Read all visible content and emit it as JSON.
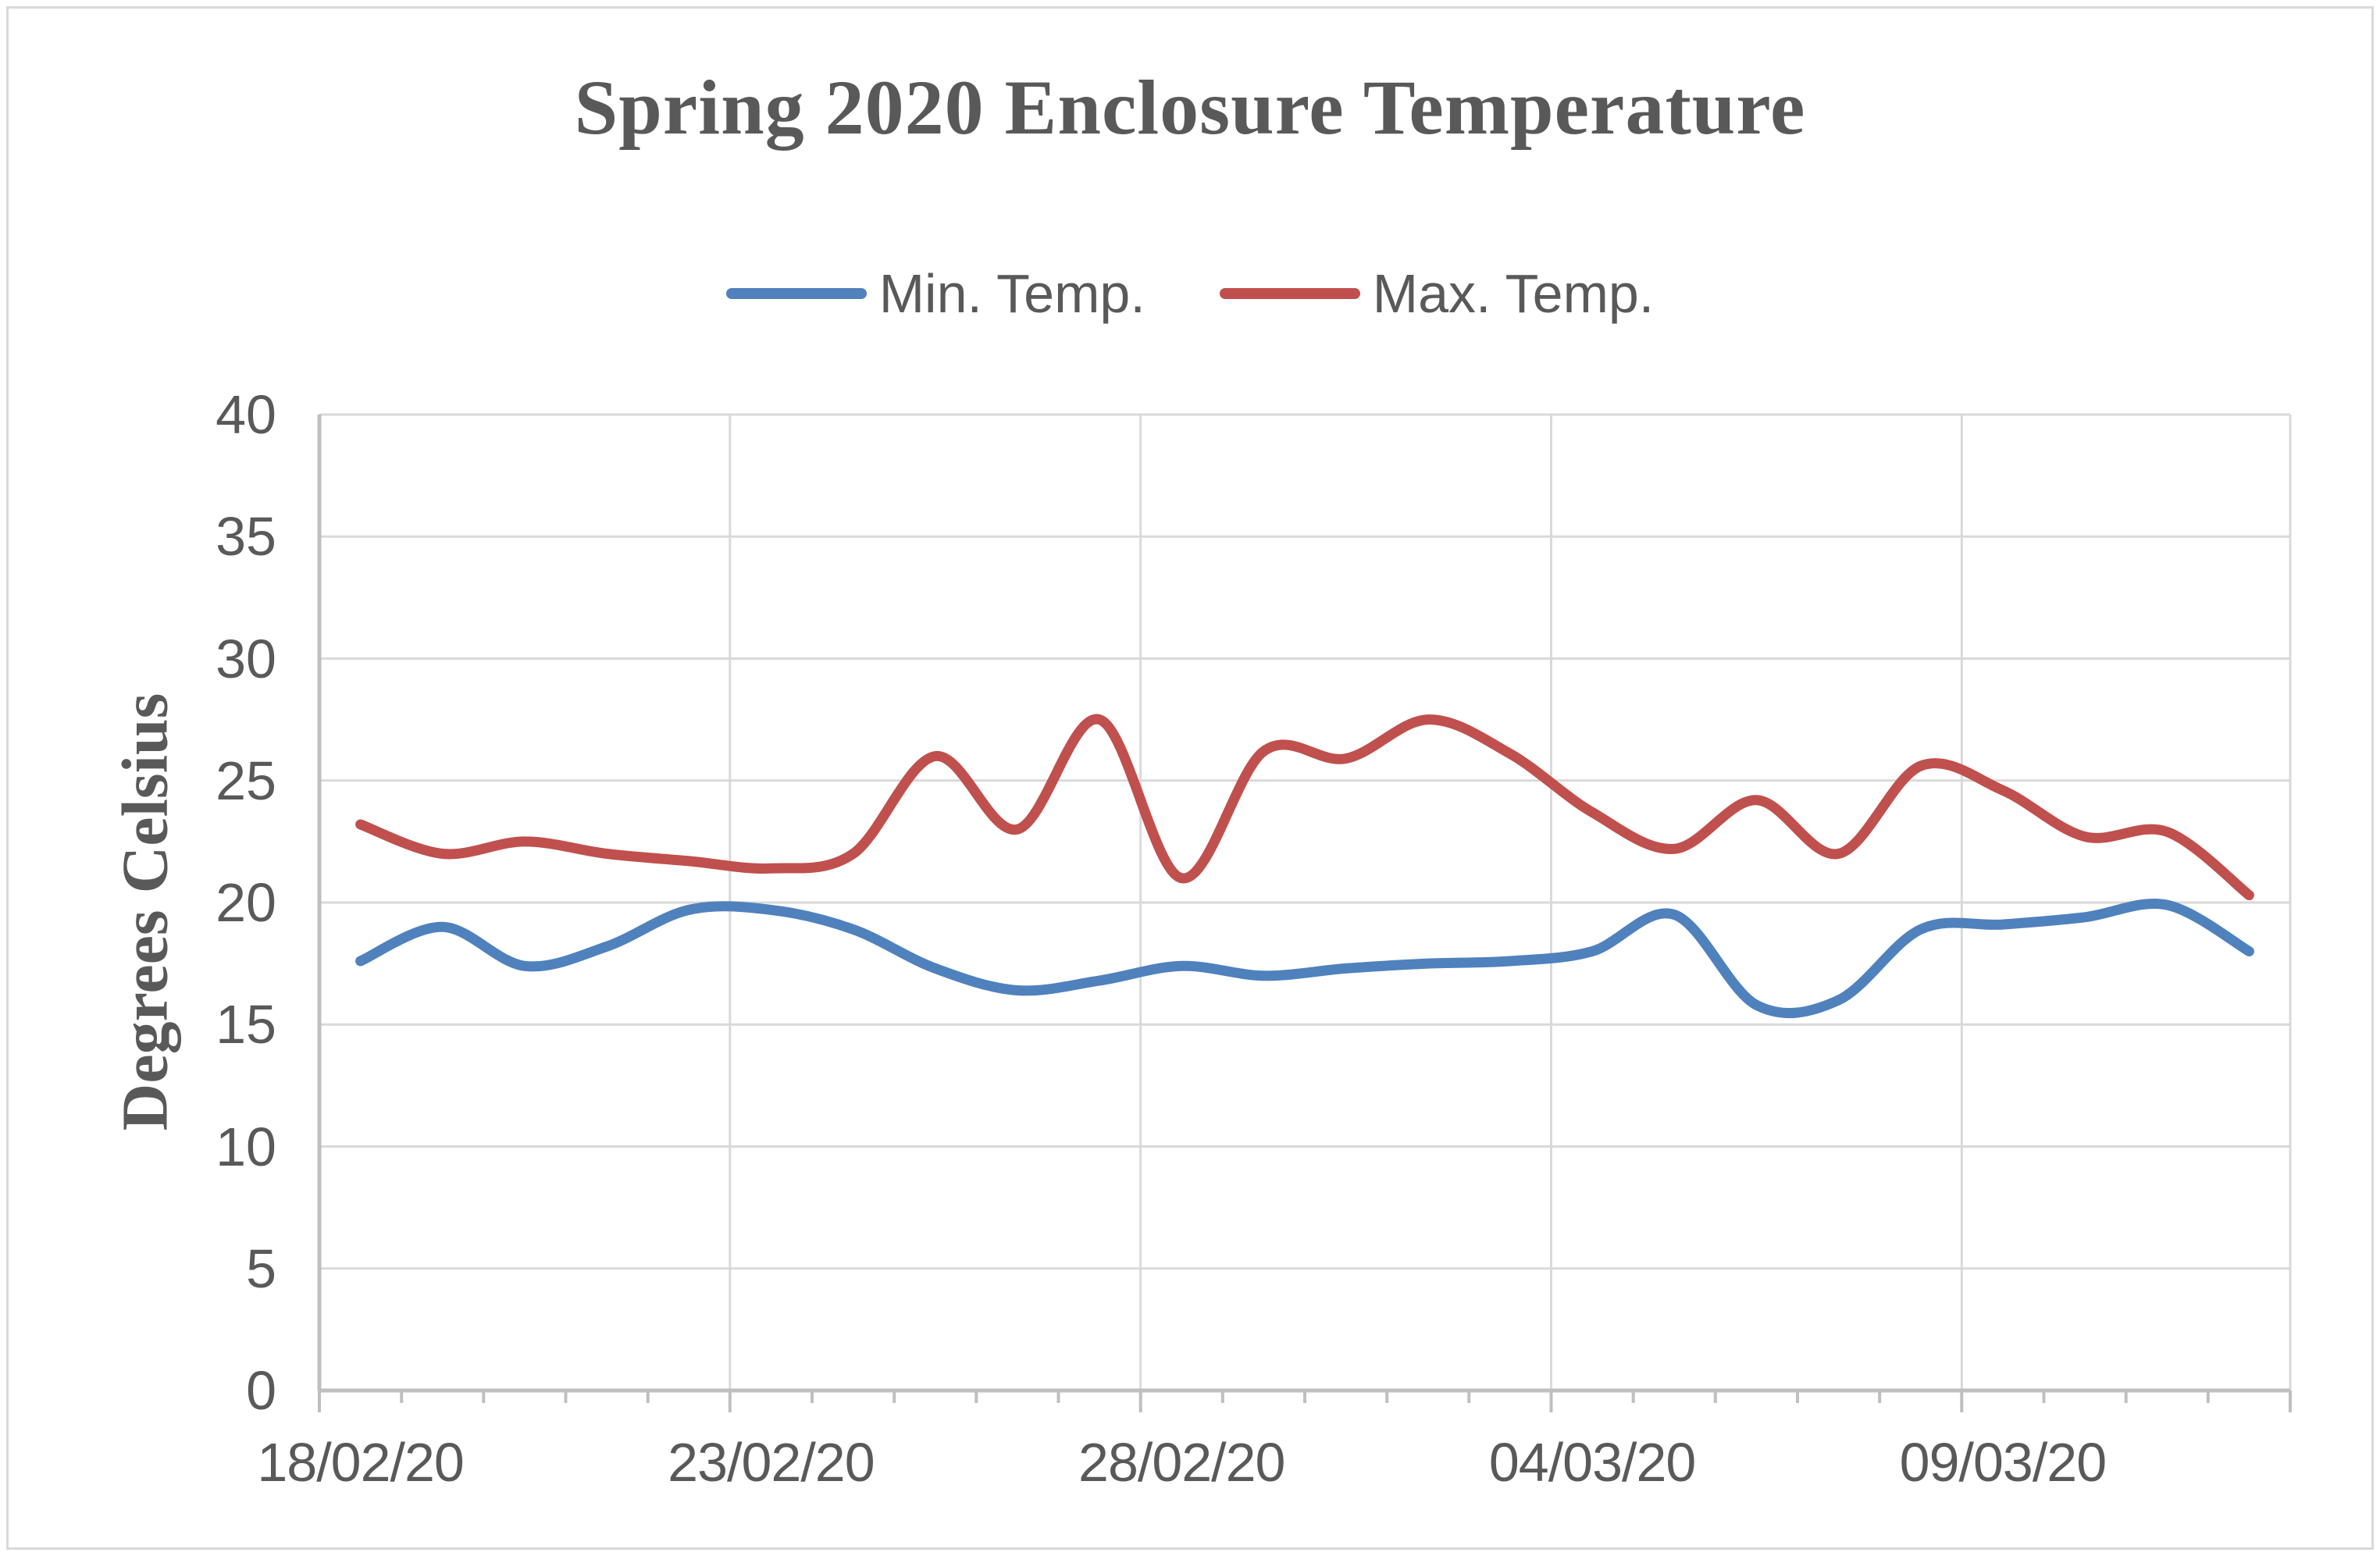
{
  "colors": {
    "background": "#FFFFFF",
    "border": "#D9D9D9",
    "gridline": "#D9D9D9",
    "axis": "#BFBFBF",
    "text": "#595959",
    "min_temp": "#4F81BD",
    "max_temp": "#C0504D"
  },
  "chart_data": {
    "type": "line",
    "title": "Spring 2020 Enclosure Temperature",
    "xlabel": "",
    "ylabel": "Degrees Celsius",
    "ylim": [
      0,
      40
    ],
    "yticks": [
      0,
      5,
      10,
      15,
      20,
      25,
      30,
      35,
      40
    ],
    "grid": true,
    "legend_position": "top-center",
    "line_style": "smoothed",
    "n_points": 24,
    "x_axis": {
      "visible_tick_labels": [
        {
          "index": 0,
          "label": "18/02/20"
        },
        {
          "index": 5,
          "label": "23/02/20"
        },
        {
          "index": 10,
          "label": "28/02/20"
        },
        {
          "index": 15,
          "label": "04/03/20"
        },
        {
          "index": 20,
          "label": "09/03/20"
        }
      ],
      "minor_tick_every": 1,
      "labeled_tick_every": 5
    },
    "series": [
      {
        "name": "Min. Temp.",
        "key": "min-temp",
        "color": "#4F81BD",
        "values": [
          17.6,
          19.0,
          17.4,
          18.2,
          19.7,
          19.7,
          18.9,
          17.3,
          16.4,
          16.8,
          17.4,
          17.0,
          17.3,
          17.5,
          17.6,
          18.0,
          19.5,
          15.8,
          16.0,
          18.9,
          19.1,
          19.4,
          19.9,
          18.0
        ]
      },
      {
        "name": "Max. Temp.",
        "key": "max-temp",
        "color": "#C0504D",
        "values": [
          23.2,
          22.0,
          22.5,
          22.0,
          21.7,
          21.4,
          22.0,
          26.0,
          23.0,
          27.5,
          21.0,
          26.2,
          25.9,
          27.5,
          26.1,
          23.7,
          22.2,
          24.2,
          22.0,
          25.6,
          24.6,
          22.7,
          22.9,
          20.3
        ]
      }
    ]
  }
}
